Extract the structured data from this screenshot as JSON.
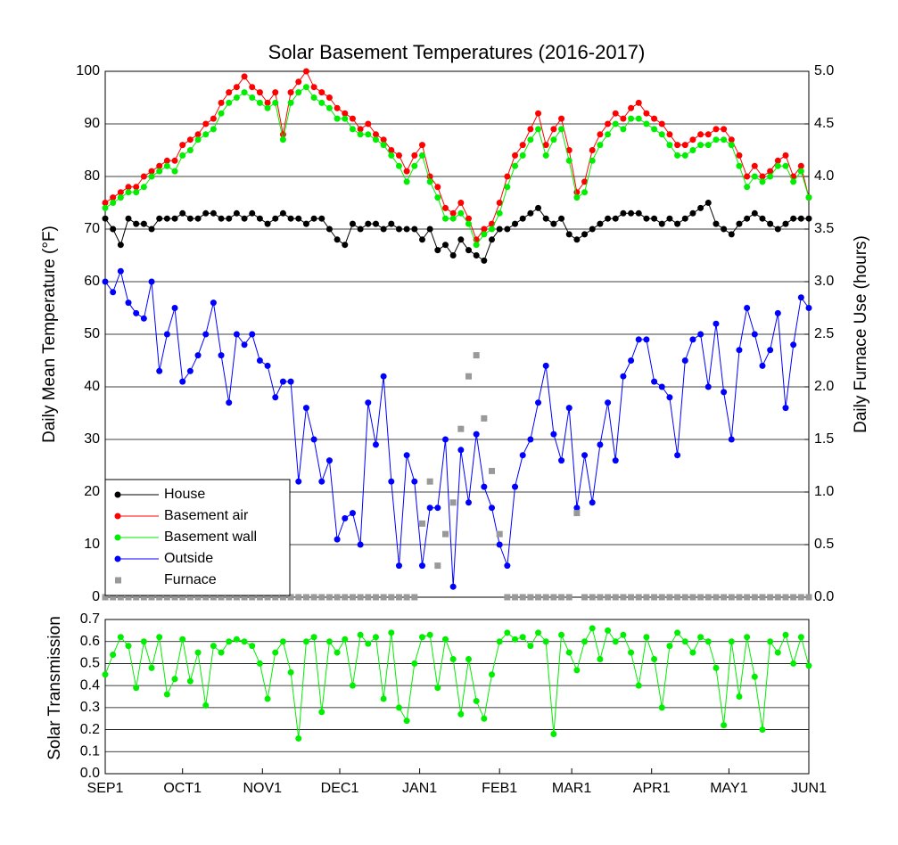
{
  "chart_data": [
    {
      "type": "line",
      "title": "Solar Basement Temperatures (2016-2017)",
      "y_label": "Daily Mean Temperature (°F)",
      "y2_label": "Daily Furnace Use (hours)",
      "x": [
        0,
        3,
        6,
        9,
        12,
        15,
        18,
        21,
        24,
        27,
        30,
        33,
        36,
        39,
        42,
        45,
        48,
        51,
        54,
        57,
        60,
        63,
        66,
        69,
        72,
        75,
        78,
        81,
        84,
        87,
        90,
        93,
        96,
        99,
        102,
        105,
        108,
        111,
        114,
        117,
        120,
        123,
        126,
        129,
        132,
        135,
        138,
        141,
        144,
        147,
        150,
        153,
        156,
        159,
        162,
        165,
        168,
        171,
        174,
        177,
        180,
        183,
        186,
        189,
        192,
        195,
        198,
        201,
        204,
        207,
        210,
        213,
        216,
        219,
        222,
        225,
        228,
        231,
        234,
        237,
        240,
        243,
        246,
        249,
        252,
        255,
        258,
        261,
        264,
        267,
        270,
        273
      ],
      "xlim": [
        0,
        273
      ],
      "ylim": [
        0,
        100
      ],
      "yticks": [
        0,
        10,
        20,
        30,
        40,
        50,
        60,
        70,
        80,
        90,
        100
      ],
      "y2lim": [
        0,
        5
      ],
      "y2ticks": [
        {
          "value": 0,
          "label": "0.0"
        },
        0.5,
        {
          "value": 1,
          "label": "1.0"
        },
        1.5,
        {
          "value": 2,
          "label": "2.0"
        },
        2.5,
        {
          "value": 3,
          "label": "3.0"
        },
        3.5,
        {
          "value": 4,
          "label": "4.0"
        },
        4.5,
        {
          "value": 5,
          "label": "5.0"
        }
      ],
      "grid": true,
      "legend": "lower left",
      "series": [
        {
          "name": "House",
          "color": "#000000",
          "values": [
            72,
            70,
            67,
            72,
            71,
            71,
            70,
            72,
            72,
            72,
            73,
            72,
            72,
            73,
            73,
            72,
            72,
            73,
            72,
            73,
            72,
            71,
            72,
            73,
            72,
            72,
            71,
            72,
            72,
            70,
            68,
            67,
            71,
            70,
            71,
            71,
            70,
            71,
            70,
            70,
            70,
            68,
            70,
            66,
            67,
            65,
            68,
            66,
            65,
            64,
            68,
            70,
            70,
            71,
            72,
            73,
            74,
            72,
            71,
            72,
            69,
            68,
            69,
            70,
            71,
            72,
            72,
            73,
            73,
            73,
            72,
            72,
            71,
            72,
            71,
            72,
            73,
            74,
            75,
            71,
            70,
            69,
            71,
            72,
            73,
            72,
            71,
            70,
            71,
            72,
            72,
            72
          ]
        },
        {
          "name": "Basement air",
          "color": "#ff0000",
          "values": [
            75,
            76,
            77,
            78,
            78,
            80,
            81,
            82,
            83,
            83,
            86,
            87,
            88,
            90,
            91,
            94,
            96,
            97,
            99,
            97,
            96,
            94,
            96,
            88,
            96,
            98,
            100,
            97,
            96,
            95,
            93,
            92,
            91,
            89,
            90,
            88,
            87,
            85,
            84,
            81,
            84,
            86,
            80,
            78,
            74,
            73,
            75,
            72,
            68,
            70,
            71,
            75,
            80,
            84,
            86,
            89,
            92,
            86,
            89,
            91,
            85,
            77,
            79,
            85,
            88,
            90,
            92,
            91,
            93,
            94,
            92,
            91,
            90,
            88,
            86,
            86,
            87,
            88,
            88,
            89,
            89,
            87,
            84,
            80,
            82,
            80,
            81,
            83,
            84,
            80,
            82,
            76
          ]
        },
        {
          "name": "Basement wall",
          "color": "#00ee00",
          "values": [
            74,
            75,
            76,
            77,
            77,
            78,
            80,
            81,
            82,
            81,
            84,
            85,
            87,
            88,
            89,
            92,
            94,
            95,
            96,
            95,
            94,
            93,
            94,
            87,
            94,
            96,
            97,
            95,
            94,
            93,
            91,
            91,
            89,
            88,
            88,
            87,
            86,
            84,
            82,
            79,
            82,
            84,
            79,
            76,
            72,
            72,
            73,
            71,
            67,
            69,
            70,
            73,
            78,
            82,
            84,
            87,
            89,
            84,
            87,
            89,
            83,
            76,
            77,
            83,
            86,
            88,
            90,
            89,
            91,
            91,
            90,
            89,
            88,
            86,
            84,
            84,
            85,
            86,
            86,
            87,
            87,
            86,
            82,
            78,
            80,
            79,
            80,
            82,
            82,
            79,
            81,
            76
          ]
        },
        {
          "name": "Outside",
          "color": "#0000ff",
          "values": [
            60,
            58,
            62,
            56,
            54,
            53,
            60,
            43,
            50,
            55,
            41,
            43,
            46,
            50,
            56,
            46,
            37,
            50,
            48,
            50,
            45,
            44,
            38,
            41,
            41,
            22,
            36,
            30,
            22,
            26,
            11,
            15,
            16,
            10,
            37,
            29,
            42,
            22,
            6,
            27,
            22,
            6,
            17,
            17,
            30,
            2,
            28,
            18,
            31,
            21,
            17,
            10,
            6,
            21,
            27,
            30,
            37,
            44,
            31,
            26,
            36,
            17,
            27,
            18,
            29,
            37,
            26,
            42,
            45,
            49,
            49,
            41,
            40,
            38,
            27,
            45,
            49,
            50,
            40,
            52,
            39,
            30,
            47,
            55,
            50,
            44,
            47,
            54,
            36,
            48,
            57,
            55
          ]
        },
        {
          "name": "Furnace",
          "color": "#999999",
          "axis": "y2",
          "marker": "square",
          "values": [
            0,
            0,
            0,
            0,
            0,
            0,
            0,
            0,
            0,
            0,
            0,
            0,
            0,
            0,
            0,
            0,
            0,
            0,
            0,
            0,
            0,
            0,
            0,
            0,
            0,
            0,
            0,
            0,
            0,
            0,
            0,
            0,
            0,
            0,
            0,
            0,
            0,
            0,
            0,
            0,
            0,
            0.7,
            1.1,
            0.3,
            0.6,
            0.9,
            1.6,
            2.1,
            2.3,
            1.7,
            1.2,
            0.6,
            0,
            0,
            0,
            0,
            0,
            0,
            0,
            0,
            0,
            0.8,
            0,
            0,
            0,
            0,
            0,
            0,
            0,
            0,
            0,
            0,
            0,
            0,
            0,
            0,
            0,
            0,
            0,
            0,
            0,
            0,
            0,
            0,
            0,
            0,
            0,
            0,
            0,
            0,
            0,
            0
          ]
        }
      ]
    },
    {
      "type": "line",
      "y_label": "Solar Transmission",
      "x": [
        0,
        3,
        6,
        9,
        12,
        15,
        18,
        21,
        24,
        27,
        30,
        33,
        36,
        39,
        42,
        45,
        48,
        51,
        54,
        57,
        60,
        63,
        66,
        69,
        72,
        75,
        78,
        81,
        84,
        87,
        90,
        93,
        96,
        99,
        102,
        105,
        108,
        111,
        114,
        117,
        120,
        123,
        126,
        129,
        132,
        135,
        138,
        141,
        144,
        147,
        150,
        153,
        156,
        159,
        162,
        165,
        168,
        171,
        174,
        177,
        180,
        183,
        186,
        189,
        192,
        195,
        198,
        201,
        204,
        207,
        210,
        213,
        216,
        219,
        222,
        225,
        228,
        231,
        234,
        237,
        240,
        243,
        246,
        249,
        252,
        255,
        258,
        261,
        264,
        267,
        270,
        273
      ],
      "xlim": [
        0,
        273
      ],
      "xticks": [
        {
          "value": 0,
          "label": "SEP1"
        },
        {
          "value": 30,
          "label": "OCT1"
        },
        {
          "value": 61,
          "label": "NOV1"
        },
        {
          "value": 91,
          "label": "DEC1"
        },
        {
          "value": 122,
          "label": "JAN1"
        },
        {
          "value": 153,
          "label": "FEB1"
        },
        {
          "value": 181,
          "label": "MAR1"
        },
        {
          "value": 212,
          "label": "APR1"
        },
        {
          "value": 242,
          "label": "MAY1"
        },
        {
          "value": 273,
          "label": "JUN1"
        }
      ],
      "ylim": [
        0,
        0.7
      ],
      "yticks": [
        {
          "value": 0,
          "label": "0.0"
        },
        0.1,
        0.2,
        0.3,
        0.4,
        0.5,
        0.6,
        0.7
      ],
      "grid": true,
      "series": [
        {
          "name": "Solar Transmission",
          "color": "#00ee00",
          "values": [
            0.45,
            0.54,
            0.62,
            0.58,
            0.39,
            0.6,
            0.48,
            0.62,
            0.36,
            0.43,
            0.61,
            0.42,
            0.55,
            0.31,
            0.58,
            0.55,
            0.6,
            0.61,
            0.6,
            0.58,
            0.5,
            0.34,
            0.55,
            0.6,
            0.46,
            0.16,
            0.6,
            0.62,
            0.28,
            0.6,
            0.55,
            0.61,
            0.4,
            0.63,
            0.59,
            0.62,
            0.34,
            0.64,
            0.3,
            0.24,
            0.5,
            0.62,
            0.63,
            0.39,
            0.61,
            0.52,
            0.27,
            0.52,
            0.33,
            0.25,
            0.45,
            0.6,
            0.64,
            0.61,
            0.62,
            0.58,
            0.64,
            0.6,
            0.18,
            0.63,
            0.55,
            0.47,
            0.6,
            0.66,
            0.52,
            0.65,
            0.6,
            0.63,
            0.55,
            0.4,
            0.62,
            0.52,
            0.3,
            0.58,
            0.64,
            0.6,
            0.55,
            0.62,
            0.6,
            0.48,
            0.22,
            0.6,
            0.35,
            0.62,
            0.44,
            0.2,
            0.6,
            0.55,
            0.63,
            0.5,
            0.62,
            0.49
          ]
        }
      ]
    }
  ]
}
